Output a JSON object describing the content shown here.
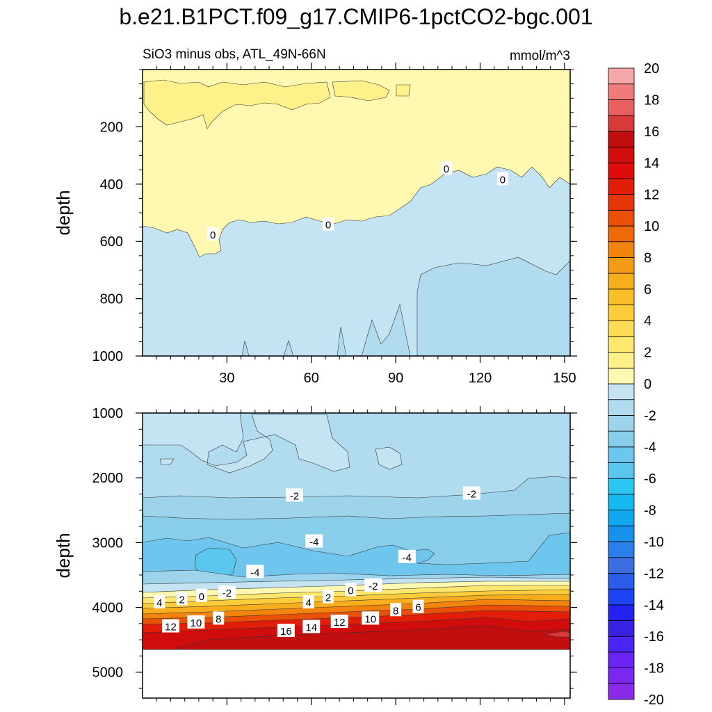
{
  "title": "b.e21.B1PCT.f09_g17.CMIP6-1pctCO2-bgc.001",
  "chart_data": {
    "type": "contour",
    "subtitle_left": "SiO3 minus obs, ATL_49N-66N",
    "subtitle_right": "mmol/m^3",
    "ylabel": "depth",
    "x_ticks": [
      30,
      60,
      90,
      120,
      150
    ],
    "x_range": [
      0,
      152
    ],
    "upper_panel": {
      "ylim": [
        0,
        1000
      ],
      "y_ticks": [
        200,
        400,
        600,
        800,
        1000
      ],
      "contour_labels": [
        {
          "text": "0",
          "x": 25,
          "y": 575
        },
        {
          "text": "0",
          "x": 66,
          "y": 540
        },
        {
          "text": "0",
          "x": 108,
          "y": 345
        },
        {
          "text": "0",
          "x": 128,
          "y": 382
        }
      ]
    },
    "lower_panel": {
      "ylim": [
        1000,
        5400
      ],
      "y_ticks": [
        1000,
        2000,
        3000,
        4000,
        5000
      ],
      "contour_labels": [
        {
          "text": "-2",
          "x": 54,
          "y": 2270
        },
        {
          "text": "-2",
          "x": 117,
          "y": 2240
        },
        {
          "text": "-4",
          "x": 61,
          "y": 2980
        },
        {
          "text": "-4",
          "x": 94,
          "y": 3220
        },
        {
          "text": "-4",
          "x": 40,
          "y": 3450
        },
        {
          "text": "-2",
          "x": 30,
          "y": 3770
        },
        {
          "text": "-2",
          "x": 82,
          "y": 3660
        },
        {
          "text": "0",
          "x": 21,
          "y": 3820
        },
        {
          "text": "0",
          "x": 74,
          "y": 3730
        },
        {
          "text": "2",
          "x": 14,
          "y": 3870
        },
        {
          "text": "2",
          "x": 66,
          "y": 3840
        },
        {
          "text": "4",
          "x": 6,
          "y": 3920
        },
        {
          "text": "4",
          "x": 59,
          "y": 3920
        },
        {
          "text": "6",
          "x": 98,
          "y": 3990
        },
        {
          "text": "8",
          "x": 27,
          "y": 4170
        },
        {
          "text": "8",
          "x": 90,
          "y": 4040
        },
        {
          "text": "10",
          "x": 19,
          "y": 4230
        },
        {
          "text": "10",
          "x": 81,
          "y": 4170
        },
        {
          "text": "12",
          "x": 10,
          "y": 4290
        },
        {
          "text": "12",
          "x": 70,
          "y": 4220
        },
        {
          "text": "14",
          "x": 60,
          "y": 4300
        },
        {
          "text": "16",
          "x": 51,
          "y": 4360
        }
      ]
    },
    "colorbar": {
      "levels": [
        -20,
        -18,
        -16,
        -14,
        -12,
        -10,
        -8,
        -6,
        -4,
        -2,
        0,
        2,
        4,
        6,
        8,
        10,
        12,
        14,
        16,
        18,
        20
      ],
      "colors_bottom_to_top": [
        "#8b2bea",
        "#7a28f0",
        "#6a25f5",
        "#4a23f5",
        "#3a22e5",
        "#2422f0",
        "#1e45f5",
        "#2a5de8",
        "#3b6ee0",
        "#2b7fea",
        "#1792ec",
        "#12a8ef",
        "#15b9f2",
        "#2cc6f3",
        "#5ac7ef",
        "#6ec6ee",
        "#88cdea",
        "#9dd4ec",
        "#b1dcef",
        "#c4e4f3",
        "#fff8b0",
        "#fff18a",
        "#fee76e",
        "#fddb54",
        "#fdcc3a",
        "#fbbf2c",
        "#f8ad1c",
        "#f59a14",
        "#f2840d",
        "#ee6a09",
        "#ea5006",
        "#e63506",
        "#e31e08",
        "#e00c0c",
        "#d00c0c",
        "#c20e0e",
        "#d83a3a",
        "#e86060",
        "#f07b7b",
        "#f6a8a8"
      ]
    },
    "fill_colors": {
      "pos_0_2": "#fff8b0",
      "pos_2_4": "#fff18a",
      "neg_0_m1": "#c4e4f3",
      "neg_m1_m2": "#b1dcef",
      "neg_m2_m3": "#9dd4ec",
      "neg_m3_m4": "#88cdea",
      "neg_m4_m5": "#6ec6ee",
      "neg_m5_m6": "#5ac7ef"
    }
  }
}
